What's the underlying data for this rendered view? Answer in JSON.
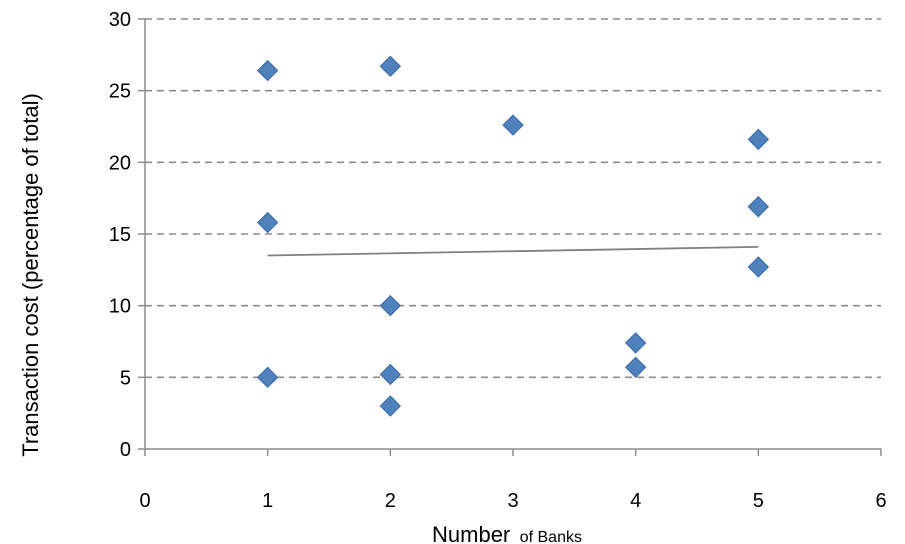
{
  "chart_data": {
    "type": "scatter",
    "title": "",
    "xlabel": "Number of Banks",
    "xlabel_parts": {
      "main": "Number",
      "rest": "of Banks"
    },
    "ylabel": "Transaction cost (percentage of total)",
    "xlim": [
      0,
      6
    ],
    "ylim": [
      0,
      30
    ],
    "xticks": [
      0,
      1,
      2,
      3,
      4,
      5,
      6
    ],
    "yticks": [
      0,
      5,
      10,
      15,
      20,
      25,
      30
    ],
    "grid": "horizontal dashed",
    "legend": "none",
    "marker": "diamond",
    "series": [
      {
        "points": [
          {
            "x": 1,
            "y": 26.4
          },
          {
            "x": 1,
            "y": 15.8
          },
          {
            "x": 1,
            "y": 5.0
          },
          {
            "x": 2,
            "y": 26.7
          },
          {
            "x": 2,
            "y": 10.0
          },
          {
            "x": 2,
            "y": 5.2
          },
          {
            "x": 2,
            "y": 3.0
          },
          {
            "x": 3,
            "y": 22.6
          },
          {
            "x": 4,
            "y": 7.4
          },
          {
            "x": 4,
            "y": 5.7
          },
          {
            "x": 5,
            "y": 21.6
          },
          {
            "x": 5,
            "y": 16.9
          },
          {
            "x": 5,
            "y": 12.7
          }
        ]
      }
    ],
    "trendline": {
      "type": "linear",
      "from": {
        "x": 1,
        "y": 13.5
      },
      "to": {
        "x": 5,
        "y": 14.1
      }
    },
    "colors": {
      "marker_fill": "#4f81bd",
      "marker_stroke": "#3a6aa3",
      "trendline": "#808080",
      "gridline": "#8c8c8c",
      "axis": "#8c8c8c",
      "text": "#000000"
    }
  }
}
